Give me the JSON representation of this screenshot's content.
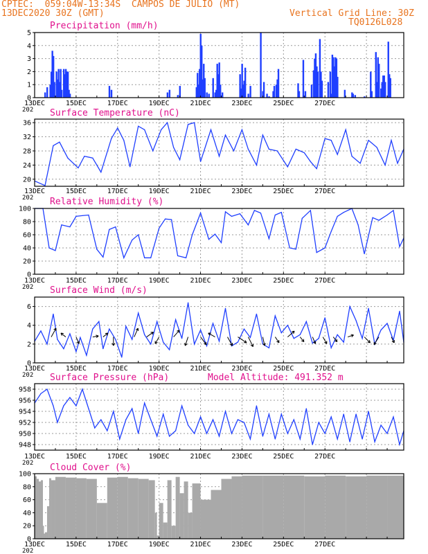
{
  "header": {
    "line1": "CPTEC:  059:04W-13:34S  CAMPOS DE JULIO (MT)",
    "line2": "13DEC2020 30Z (GMT)",
    "grid_note": "Vertical Grid Line: 30Z",
    "code": "TQ0126L028"
  },
  "colors": {
    "header": "#e8731e",
    "title": "#e0108c",
    "series": "#1f3fff",
    "cloud": "#a9a9a9",
    "frame": "#000000",
    "grid": "#9a9a9a"
  },
  "date_labels": [
    "13DEC",
    "15DEC",
    "17DEC",
    "19DEC",
    "21DEC",
    "23DEC",
    "25DEC",
    "27DEC"
  ],
  "year_fragment": "202",
  "chart_data": [
    {
      "id": "precip",
      "type": "bar",
      "title": "Precipitation (mm/h)",
      "ylim": [
        0,
        5
      ],
      "yticks": [
        0,
        1,
        2,
        3,
        4,
        5
      ],
      "x_days": [
        0.5,
        0.6,
        0.75,
        0.8,
        0.85,
        0.9,
        0.95,
        1.05,
        1.1,
        1.15,
        1.2,
        1.25,
        1.3,
        1.4,
        1.45,
        1.5,
        1.55,
        1.6,
        1.65,
        1.7,
        3.6,
        3.7,
        6.4,
        6.5,
        6.9,
        7.0,
        7.8,
        7.85,
        7.9,
        7.95,
        8.0,
        8.05,
        8.1,
        8.15,
        8.2,
        8.3,
        8.4,
        8.6,
        8.7,
        8.75,
        8.8,
        8.85,
        8.9,
        8.95,
        9.05,
        9.9,
        9.95,
        10.0,
        10.05,
        10.1,
        10.15,
        10.3,
        10.4,
        10.9,
        11.0,
        11.05,
        11.2,
        11.3,
        11.5,
        11.55,
        11.65,
        11.7,
        11.75,
        12.7,
        12.75,
        12.95,
        13.05,
        13.35,
        13.45,
        13.5,
        13.55,
        13.6,
        13.65,
        13.75,
        13.8,
        13.85,
        14.15,
        14.25,
        14.3,
        14.35,
        14.4,
        14.45,
        14.5,
        14.55,
        14.6,
        14.95,
        15.3,
        15.35,
        15.45,
        15.9,
        16.2,
        16.25,
        16.45,
        16.5,
        16.55,
        16.6,
        16.7,
        16.75,
        16.8,
        16.85,
        16.9,
        17.05,
        17.1,
        17.15
      ],
      "values": [
        0.4,
        0.8,
        1.0,
        2.0,
        3.6,
        3.2,
        1.2,
        2.0,
        1.4,
        2.2,
        1.2,
        2.2,
        0.6,
        2.2,
        1.8,
        2.2,
        2.0,
        2.0,
        0.6,
        0.3,
        0.9,
        0.6,
        0.4,
        0.6,
        0.2,
        0.9,
        0.8,
        1.9,
        1.0,
        2.2,
        4.9,
        4.0,
        1.4,
        2.6,
        1.5,
        0.4,
        0.3,
        1.5,
        0.4,
        0.6,
        2.6,
        1.8,
        2.7,
        1.0,
        0.4,
        1.8,
        0.7,
        2.6,
        1.0,
        1.3,
        2.3,
        0.3,
        0.9,
        5.0,
        0.5,
        1.2,
        0.3,
        0.1,
        0.5,
        0.9,
        1.0,
        1.4,
        2.2,
        1.1,
        0.5,
        2.9,
        0.5,
        1.0,
        2.1,
        3.0,
        3.4,
        2.4,
        2.0,
        4.5,
        2.0,
        1.3,
        1.2,
        2.0,
        0.3,
        3.3,
        3.1,
        2.4,
        3.1,
        3.0,
        1.6,
        0.6,
        0.4,
        0.3,
        0.2,
        0.1,
        2.0,
        0.5,
        3.5,
        1.2,
        3.1,
        2.6,
        0.7,
        1.2,
        1.7,
        1.7,
        1.2,
        4.3,
        1.8,
        1.5
      ],
      "xlabel": "",
      "ylabel": ""
    },
    {
      "id": "temp",
      "type": "line",
      "title": "Surface Temperature (nC)",
      "ylim": [
        18,
        37
      ],
      "yticks": [
        20,
        24,
        28,
        32,
        36
      ],
      "x_days": [
        0.0,
        0.5,
        0.9,
        1.2,
        1.6,
        2.1,
        2.4,
        2.8,
        3.2,
        3.7,
        4.0,
        4.3,
        4.6,
        5.0,
        5.3,
        5.7,
        6.1,
        6.4,
        6.7,
        7.0,
        7.4,
        7.7,
        8.0,
        8.5,
        8.9,
        9.2,
        9.6,
        10.0,
        10.3,
        10.7,
        11.0,
        11.3,
        11.7,
        12.2,
        12.6,
        13.0,
        13.3,
        13.6,
        14.0,
        14.3,
        14.6,
        15.0,
        15.3,
        15.7,
        16.1,
        16.5,
        16.9,
        17.2,
        17.5,
        17.8
      ],
      "values": [
        19.5,
        18.2,
        29.5,
        30.5,
        26.0,
        23.2,
        26.5,
        26.0,
        22.0,
        31.5,
        34.5,
        31.0,
        23.5,
        35.0,
        34.0,
        28.0,
        34.0,
        36.0,
        29.0,
        25.5,
        35.5,
        36.0,
        25.0,
        34.0,
        26.5,
        32.5,
        28.0,
        34.0,
        28.5,
        24.0,
        32.5,
        28.5,
        28.0,
        23.5,
        28.5,
        27.5,
        25.0,
        23.0,
        31.5,
        31.0,
        27.0,
        34.0,
        26.5,
        24.5,
        31.0,
        29.0,
        24.0,
        31.0,
        24.5,
        28.5
      ],
      "xlabel": "",
      "ylabel": ""
    },
    {
      "id": "rh",
      "type": "line",
      "title": "Relative Humidity (%)",
      "ylim": [
        0,
        100
      ],
      "yticks": [
        0,
        20,
        40,
        60,
        80,
        100
      ],
      "x_days": [
        0.0,
        0.4,
        0.7,
        1.0,
        1.3,
        1.7,
        2.0,
        2.3,
        2.6,
        3.0,
        3.3,
        3.6,
        3.9,
        4.3,
        4.7,
        5.0,
        5.3,
        5.6,
        6.0,
        6.3,
        6.6,
        6.9,
        7.3,
        7.6,
        8.0,
        8.4,
        8.7,
        9.0,
        9.2,
        9.5,
        9.9,
        10.3,
        10.6,
        10.9,
        11.3,
        11.6,
        11.9,
        12.3,
        12.6,
        12.9,
        13.3,
        13.6,
        14.0,
        14.3,
        14.6,
        14.9,
        15.3,
        15.6,
        15.9,
        16.3,
        16.6,
        17.0,
        17.3,
        17.6,
        17.8
      ],
      "values": [
        100,
        100,
        40,
        36,
        75,
        72,
        88,
        89,
        90,
        38,
        26,
        68,
        72,
        25,
        52,
        60,
        25,
        25,
        70,
        84,
        83,
        28,
        25,
        60,
        93,
        53,
        61,
        48,
        95,
        88,
        92,
        75,
        97,
        93,
        54,
        90,
        94,
        40,
        38,
        85,
        97,
        33,
        40,
        65,
        88,
        94,
        100,
        75,
        31,
        86,
        82,
        90,
        97,
        42,
        55
      ],
      "xlabel": "",
      "ylabel": ""
    },
    {
      "id": "wind",
      "type": "line",
      "title": "Surface Wind (m/s)",
      "ylim": [
        0,
        7
      ],
      "yticks": [
        0,
        2,
        4,
        6
      ],
      "x_days": [
        0.0,
        0.3,
        0.6,
        0.9,
        1.1,
        1.4,
        1.7,
        2.0,
        2.2,
        2.5,
        2.8,
        3.1,
        3.3,
        3.6,
        3.9,
        4.2,
        4.4,
        4.7,
        5.0,
        5.3,
        5.6,
        5.9,
        6.2,
        6.5,
        6.8,
        7.1,
        7.4,
        7.7,
        8.0,
        8.3,
        8.6,
        8.9,
        9.2,
        9.5,
        9.8,
        10.1,
        10.4,
        10.7,
        11.0,
        11.3,
        11.6,
        11.9,
        12.2,
        12.5,
        12.8,
        13.1,
        13.4,
        13.7,
        14.0,
        14.3,
        14.6,
        14.9,
        15.2,
        15.5,
        15.8,
        16.1,
        16.4,
        16.7,
        17.0,
        17.3,
        17.6,
        17.8
      ],
      "values": [
        2.3,
        3.4,
        2.0,
        5.2,
        2.5,
        1.5,
        3.1,
        1.2,
        2.7,
        0.8,
        3.6,
        4.4,
        1.5,
        3.6,
        2.5,
        0.6,
        3.9,
        2.5,
        5.3,
        3.0,
        2.0,
        4.4,
        2.2,
        1.4,
        4.6,
        2.6,
        6.4,
        2.0,
        3.5,
        1.8,
        4.2,
        2.3,
        5.8,
        1.8,
        2.2,
        3.6,
        2.7,
        5.2,
        2.0,
        1.6,
        5.0,
        3.2,
        4.0,
        2.6,
        3.0,
        4.4,
        2.1,
        2.6,
        4.8,
        1.6,
        3.0,
        2.2,
        6.0,
        4.5,
        2.6,
        5.8,
        2.0,
        3.5,
        4.2,
        2.4,
        5.5,
        2.2
      ],
      "arrows": [
        {
          "day": 0.8,
          "u": 0.5,
          "v": 0.9
        },
        {
          "day": 1.5,
          "u": -0.5,
          "v": 0.4
        },
        {
          "day": 2.0,
          "u": 0.3,
          "v": -0.7
        },
        {
          "day": 2.8,
          "u": 0.6,
          "v": 0.1
        },
        {
          "day": 3.3,
          "u": 0.5,
          "v": 0.4
        },
        {
          "day": 3.8,
          "u": 0.0,
          "v": -0.9
        },
        {
          "day": 4.8,
          "u": 0.4,
          "v": 0.9
        },
        {
          "day": 5.4,
          "u": 0.7,
          "v": 0.5
        },
        {
          "day": 6.0,
          "u": -0.4,
          "v": -0.7
        },
        {
          "day": 6.7,
          "u": 0.6,
          "v": 0.7
        },
        {
          "day": 7.4,
          "u": -0.3,
          "v": -0.9
        },
        {
          "day": 8.0,
          "u": 0.6,
          "v": -0.8
        },
        {
          "day": 8.7,
          "u": -0.7,
          "v": 0.4
        },
        {
          "day": 9.3,
          "u": 0.5,
          "v": -0.9
        },
        {
          "day": 9.8,
          "u": 0.9,
          "v": -0.6
        },
        {
          "day": 10.3,
          "u": 0.5,
          "v": -1.0
        },
        {
          "day": 11.0,
          "u": 0.2,
          "v": -0.9
        },
        {
          "day": 11.6,
          "u": 0.4,
          "v": -0.6
        },
        {
          "day": 12.2,
          "u": 0.7,
          "v": 0.6
        },
        {
          "day": 12.8,
          "u": 0.4,
          "v": -0.5
        },
        {
          "day": 13.4,
          "u": 0.3,
          "v": -0.7
        },
        {
          "day": 13.9,
          "u": 0.4,
          "v": -0.7
        },
        {
          "day": 14.4,
          "u": 0.4,
          "v": -0.5
        },
        {
          "day": 15.1,
          "u": 0.6,
          "v": 0.2
        },
        {
          "day": 15.9,
          "u": 0.6,
          "v": -0.6
        },
        {
          "day": 16.6,
          "u": -0.5,
          "v": -0.8
        },
        {
          "day": 17.2,
          "u": 0.3,
          "v": -0.6
        }
      ],
      "xlabel": "",
      "ylabel": ""
    },
    {
      "id": "pres",
      "type": "line",
      "title": "Surface Pressure (hPa)",
      "model_altitude": "Model Altitude: 491.352 m",
      "ylim": [
        947,
        959
      ],
      "yticks": [
        948,
        950,
        952,
        954,
        956,
        958
      ],
      "x_days": [
        0.0,
        0.3,
        0.6,
        0.9,
        1.1,
        1.4,
        1.7,
        2.0,
        2.3,
        2.6,
        2.9,
        3.2,
        3.5,
        3.8,
        4.1,
        4.4,
        4.7,
        5.0,
        5.3,
        5.6,
        5.9,
        6.2,
        6.5,
        6.8,
        7.1,
        7.4,
        7.7,
        8.0,
        8.3,
        8.6,
        8.9,
        9.2,
        9.5,
        9.8,
        10.1,
        10.4,
        10.7,
        11.0,
        11.3,
        11.6,
        11.9,
        12.2,
        12.5,
        12.8,
        13.1,
        13.4,
        13.7,
        14.0,
        14.3,
        14.6,
        14.9,
        15.2,
        15.5,
        15.8,
        16.1,
        16.4,
        16.7,
        17.0,
        17.3,
        17.6,
        17.8
      ],
      "values": [
        955.5,
        957.2,
        958.0,
        955.0,
        952.0,
        955.0,
        956.5,
        955.0,
        958.0,
        954.5,
        951.0,
        952.5,
        950.5,
        954.0,
        949.0,
        952.5,
        954.5,
        950.0,
        955.5,
        952.5,
        949.5,
        953.5,
        949.5,
        950.5,
        955.0,
        951.5,
        950.0,
        953.0,
        950.0,
        952.5,
        949.5,
        954.0,
        950.0,
        952.5,
        952.0,
        949.0,
        955.0,
        949.5,
        953.5,
        949.0,
        953.5,
        950.0,
        952.5,
        949.0,
        954.5,
        948.0,
        952.0,
        950.0,
        953.0,
        949.0,
        953.5,
        948.5,
        953.5,
        949.0,
        954.0,
        948.5,
        951.5,
        950.0,
        953.0,
        948.0,
        950.5
      ],
      "xlabel": "",
      "ylabel": ""
    },
    {
      "id": "cloud",
      "type": "area",
      "title": "Cloud Cover (%)",
      "ylim": [
        0,
        100
      ],
      "yticks": [
        0,
        20,
        40,
        60,
        80,
        100
      ],
      "x_days": [
        0.0,
        0.1,
        0.2,
        0.3,
        0.4,
        0.45,
        0.5,
        0.6,
        0.7,
        0.8,
        1.0,
        1.5,
        2.0,
        2.5,
        3.0,
        3.5,
        4.0,
        4.5,
        5.0,
        5.5,
        5.8,
        5.9,
        6.0,
        6.2,
        6.4,
        6.6,
        6.8,
        7.0,
        7.2,
        7.4,
        7.6,
        8.0,
        8.5,
        9.0,
        9.5,
        10.0,
        11.0,
        12.0,
        13.0,
        14.0,
        15.0,
        16.0,
        17.0,
        17.8
      ],
      "values": [
        96,
        92,
        88,
        90,
        20,
        8,
        10,
        50,
        93,
        90,
        95,
        94,
        93,
        92,
        55,
        94,
        95,
        93,
        92,
        90,
        40,
        5,
        55,
        25,
        90,
        20,
        95,
        70,
        88,
        40,
        85,
        60,
        75,
        92,
        96,
        97,
        97,
        97,
        96,
        97,
        96,
        97,
        97,
        96
      ],
      "xlabel": "",
      "ylabel": ""
    }
  ]
}
